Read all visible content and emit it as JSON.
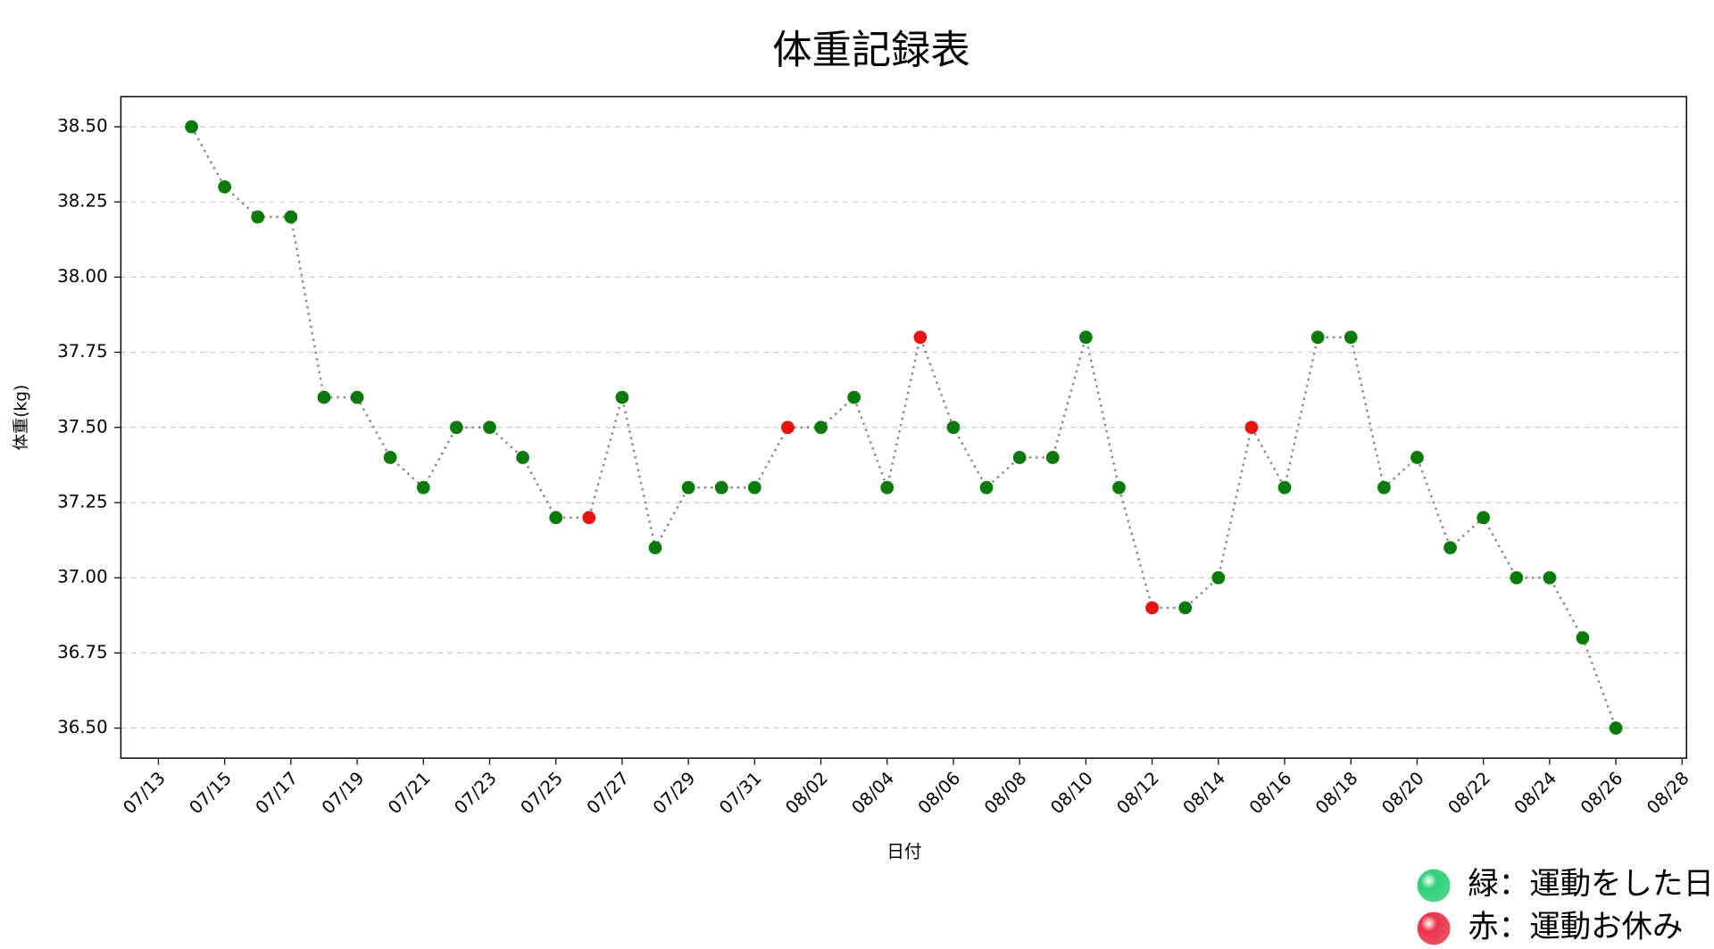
{
  "chart_data": {
    "type": "line",
    "title": "体重記録表",
    "x_label": "日付",
    "y_label": "体重(kg)",
    "x": [
      "07/14",
      "07/15",
      "07/16",
      "07/17",
      "07/18",
      "07/19",
      "07/20",
      "07/21",
      "07/22",
      "07/23",
      "07/24",
      "07/25",
      "07/26",
      "07/27",
      "07/28",
      "07/29",
      "07/30",
      "07/31",
      "08/01",
      "08/02",
      "08/03",
      "08/04",
      "08/05",
      "08/06",
      "08/07",
      "08/08",
      "08/09",
      "08/10",
      "08/11",
      "08/12",
      "08/13",
      "08/14",
      "08/15",
      "08/16",
      "08/17",
      "08/18",
      "08/19",
      "08/20",
      "08/21",
      "08/22",
      "08/23",
      "08/24",
      "08/25",
      "08/26"
    ],
    "values": [
      38.5,
      38.3,
      38.2,
      38.2,
      37.6,
      37.6,
      37.4,
      37.3,
      37.5,
      37.5,
      37.4,
      37.2,
      37.2,
      37.6,
      37.1,
      37.3,
      37.3,
      37.3,
      37.5,
      37.5,
      37.6,
      37.3,
      37.8,
      37.5,
      37.3,
      37.4,
      37.4,
      37.8,
      37.3,
      36.9,
      36.9,
      37.0,
      37.5,
      37.3,
      37.8,
      37.8,
      37.3,
      37.4,
      37.1,
      37.2,
      37.0,
      37.0,
      36.8,
      36.5
    ],
    "point_colors": [
      "#0b7a0b",
      "#0b7a0b",
      "#0b7a0b",
      "#0b7a0b",
      "#0b7a0b",
      "#0b7a0b",
      "#0b7a0b",
      "#0b7a0b",
      "#0b7a0b",
      "#0b7a0b",
      "#0b7a0b",
      "#0b7a0b",
      "#e81414",
      "#0b7a0b",
      "#0b7a0b",
      "#0b7a0b",
      "#0b7a0b",
      "#0b7a0b",
      "#e81414",
      "#0b7a0b",
      "#0b7a0b",
      "#0b7a0b",
      "#e81414",
      "#0b7a0b",
      "#0b7a0b",
      "#0b7a0b",
      "#0b7a0b",
      "#0b7a0b",
      "#0b7a0b",
      "#e81414",
      "#0b7a0b",
      "#0b7a0b",
      "#e81414",
      "#0b7a0b",
      "#0b7a0b",
      "#0b7a0b",
      "#0b7a0b",
      "#0b7a0b",
      "#0b7a0b",
      "#0b7a0b",
      "#0b7a0b",
      "#0b7a0b",
      "#0b7a0b",
      "#0b7a0b"
    ],
    "line_color": "#888888",
    "xlim": [
      "07/12",
      "08/28"
    ],
    "xticks": [
      "07/13",
      "07/15",
      "07/17",
      "07/19",
      "07/21",
      "07/23",
      "07/25",
      "07/27",
      "07/29",
      "07/31",
      "08/02",
      "08/04",
      "08/06",
      "08/08",
      "08/10",
      "08/12",
      "08/14",
      "08/16",
      "08/18",
      "08/20",
      "08/22",
      "08/24",
      "08/26",
      "08/28"
    ],
    "ylim": [
      36.4,
      38.6
    ],
    "yticks": [
      {
        "value": 36.5,
        "label": "36.50"
      },
      {
        "value": 36.75,
        "label": "36.75"
      },
      {
        "value": 37.0,
        "label": "37.00"
      },
      {
        "value": 37.25,
        "label": "37.25"
      },
      {
        "value": 37.5,
        "label": "37.50"
      },
      {
        "value": 37.75,
        "label": "37.75"
      },
      {
        "value": 38.0,
        "label": "38.00"
      },
      {
        "value": 38.25,
        "label": "38.25"
      },
      {
        "value": 38.5,
        "label": "38.50"
      }
    ],
    "grid": true,
    "legend_position": "bottom-right",
    "legend": [
      {
        "label": "緑：運動をした日",
        "color": "#2ecf7a"
      },
      {
        "label": "赤：運動お休み",
        "color": "#e8344a"
      }
    ]
  }
}
